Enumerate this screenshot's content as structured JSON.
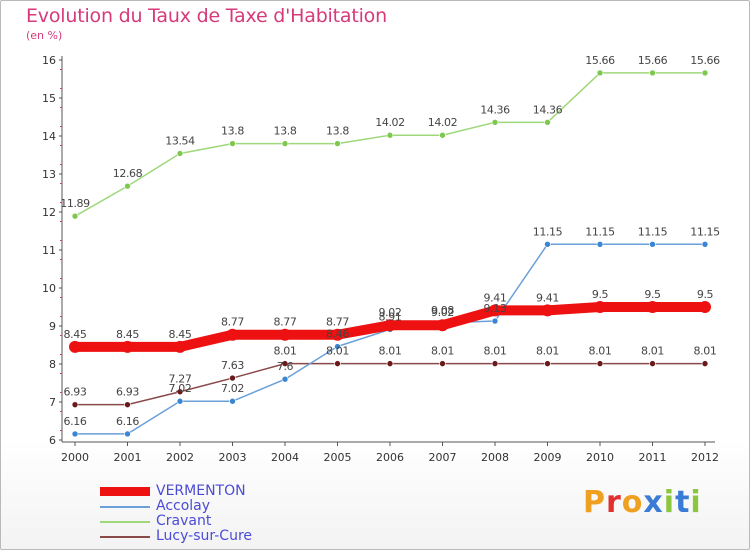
{
  "header": {
    "title": "Evolution du Taux de Taxe d'Habitation",
    "unit": "(en %)"
  },
  "colors": {
    "title": "#d63a7a",
    "legend_text": "#4b4bd6",
    "axis": "#555555",
    "tick_mark": "#d63a7a"
  },
  "logo": {
    "text": "Proxiti",
    "letters": [
      {
        "ch": "P",
        "color": "#f0a020"
      },
      {
        "ch": "r",
        "color": "#e03030"
      },
      {
        "ch": "o",
        "color": "#f0a020"
      },
      {
        "ch": "x",
        "color": "#3a7bd5"
      },
      {
        "ch": "i",
        "color": "#8cc63f"
      },
      {
        "ch": "t",
        "color": "#3a7bd5"
      },
      {
        "ch": "i",
        "color": "#8cc63f"
      }
    ]
  },
  "chart_data": {
    "type": "line",
    "title": "Evolution du Taux de Taxe d'Habitation",
    "ylabel": "(en %)",
    "xlabel": "",
    "x": [
      "2000",
      "2001",
      "2002",
      "2003",
      "2004",
      "2005",
      "2006",
      "2007",
      "2008",
      "2009",
      "2010",
      "2011",
      "2012"
    ],
    "ylim": [
      6,
      16
    ],
    "yticks": [
      "6",
      "7",
      "8",
      "9",
      "10",
      "11",
      "12",
      "13",
      "14",
      "15",
      "16"
    ],
    "grid": false,
    "legend_position": "bottom-left",
    "series": [
      {
        "name": "VERMENTON",
        "color": "#ee1111",
        "point_color": "#ee1111",
        "width": 10,
        "values": [
          8.45,
          8.45,
          8.45,
          8.77,
          8.77,
          8.77,
          9.02,
          9.02,
          9.41,
          9.41,
          9.5,
          9.5,
          9.5
        ],
        "labels": [
          "8.45",
          "8.45",
          "8.45",
          "8.77",
          "8.77",
          "8.77",
          "9.02",
          "9.02",
          "9.41",
          "9.41",
          "9.5",
          "9.5",
          "9.5"
        ]
      },
      {
        "name": "Accolay",
        "color": "#6a9fd8",
        "point_color": "#3a86d4",
        "width": 1.5,
        "values": [
          6.16,
          6.16,
          7.02,
          7.02,
          7.6,
          8.46,
          8.91,
          9.08,
          9.13,
          11.15,
          11.15,
          11.15,
          11.15
        ],
        "labels": [
          "6.16",
          "6.16",
          "7.02",
          "7.02",
          "7.6",
          "8.46",
          "8.91",
          "9.08",
          "9.13",
          "11.15",
          "11.15",
          "11.15",
          "11.15"
        ]
      },
      {
        "name": "Cravant",
        "color": "#9ed87a",
        "point_color": "#7ec850",
        "width": 1.5,
        "values": [
          11.89,
          12.68,
          13.54,
          13.8,
          13.8,
          13.8,
          14.02,
          14.02,
          14.36,
          14.36,
          15.66,
          15.66,
          15.66
        ],
        "labels": [
          "11.89",
          "12.68",
          "13.54",
          "13.8",
          "13.8",
          "13.8",
          "14.02",
          "14.02",
          "14.36",
          "14.36",
          "15.66",
          "15.66",
          "15.66"
        ]
      },
      {
        "name": "Lucy-sur-Cure",
        "color": "#8a4a4a",
        "point_color": "#6a1a1a",
        "width": 1.5,
        "values": [
          6.93,
          6.93,
          7.27,
          7.63,
          8.01,
          8.01,
          8.01,
          8.01,
          8.01,
          8.01,
          8.01,
          8.01,
          8.01
        ],
        "labels": [
          "6.93",
          "6.93",
          "7.27",
          "7.63",
          "8.01",
          "8.01",
          "8.01",
          "8.01",
          "8.01",
          "8.01",
          "8.01",
          "8.01",
          "8.01"
        ]
      }
    ]
  }
}
